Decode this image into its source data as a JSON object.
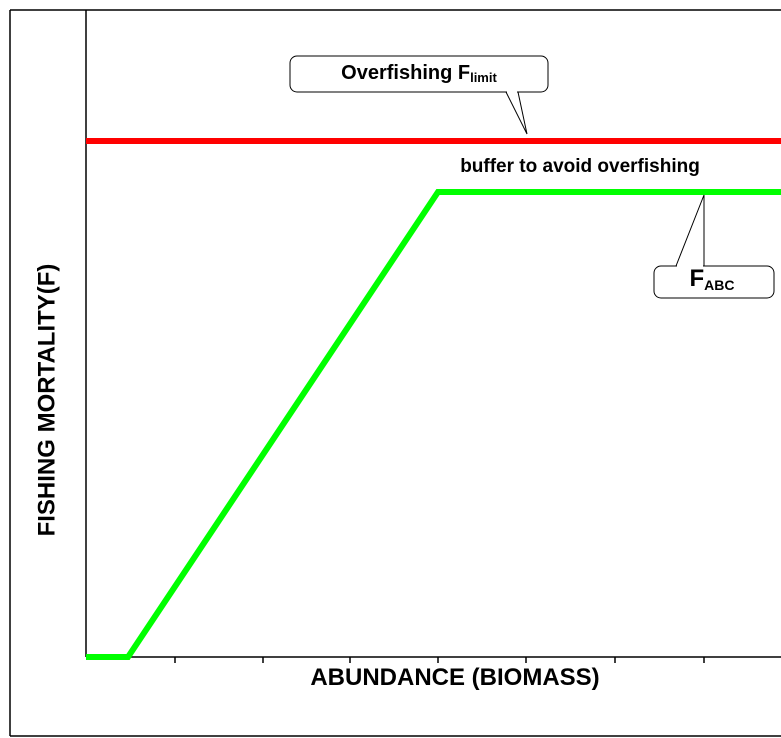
{
  "y_axis_label": "FISHING MORTALITY(F)",
  "x_axis_label": "ABUNDANCE (BIOMASS)",
  "limit_callout": {
    "text": "Overfishing F",
    "subscript": "limit"
  },
  "buffer_note": "buffer to avoid overfishing",
  "abc_callout": {
    "text": "F",
    "subscript": "ABC"
  }
}
